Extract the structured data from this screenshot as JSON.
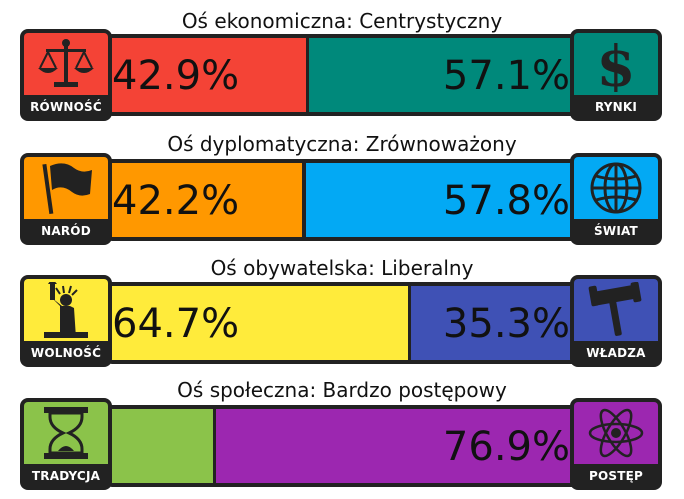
{
  "axes": [
    {
      "title": "Oś ekonomiczna: Centrystyczny",
      "left": {
        "label": "RÓWNOŚĆ",
        "icon": "scales-icon",
        "value": 42.9,
        "text": "42.9%",
        "color": "#f44336",
        "icon_bg": "#f44336"
      },
      "right": {
        "label": "RYNKI",
        "icon": "dollar-icon",
        "value": 57.1,
        "text": "57.1%",
        "color": "#00897b",
        "icon_bg": "#00897b"
      }
    },
    {
      "title": "Oś dyplomatyczna: Zrównoważony",
      "left": {
        "label": "NARÓD",
        "icon": "flag-icon",
        "value": 42.2,
        "text": "42.2%",
        "color": "#ff9800",
        "icon_bg": "#ff9800"
      },
      "right": {
        "label": "ŚWIAT",
        "icon": "globe-icon",
        "value": 57.8,
        "text": "57.8%",
        "color": "#03a9f4",
        "icon_bg": "#03a9f4"
      }
    },
    {
      "title": "Oś obywatelska: Liberalny",
      "left": {
        "label": "WOLNOŚĆ",
        "icon": "liberty-icon",
        "value": 64.7,
        "text": "64.7%",
        "color": "#ffeb3b",
        "icon_bg": "#ffeb3b"
      },
      "right": {
        "label": "WŁADZA",
        "icon": "gavel-icon",
        "value": 35.3,
        "text": "35.3%",
        "color": "#3f51b5",
        "icon_bg": "#3f51b5"
      }
    },
    {
      "title": "Oś społeczna: Bardzo postępowy",
      "left": {
        "label": "TRADYCJA",
        "icon": "hourglass-icon",
        "value": 23.1,
        "text": "",
        "color": "#8bc34a",
        "icon_bg": "#8bc34a"
      },
      "right": {
        "label": "POSTĘP",
        "icon": "atom-icon",
        "value": 76.9,
        "text": "76.9%",
        "color": "#9c27b0",
        "icon_bg": "#9c27b0"
      }
    }
  ]
}
